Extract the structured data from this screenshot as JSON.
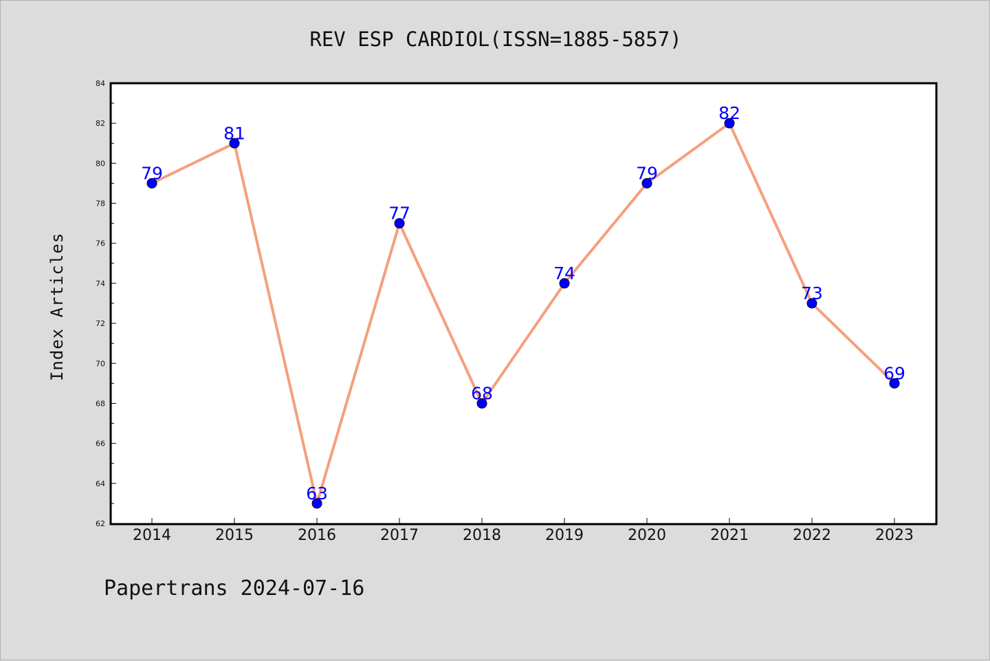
{
  "page": {
    "footer": "Papertrans 2024-07-16"
  },
  "chart_data": {
    "type": "line",
    "title": "REV ESP CARDIOL(ISSN=1885-5857)",
    "xlabel": "",
    "ylabel": "Index Articles",
    "categories": [
      "2014",
      "2015",
      "2016",
      "2017",
      "2018",
      "2019",
      "2020",
      "2021",
      "2022",
      "2023"
    ],
    "series": [
      {
        "values": [
          79,
          81,
          63,
          77,
          68,
          74,
          79,
          82,
          73,
          69
        ]
      }
    ],
    "ylim": [
      62,
      84
    ],
    "yticks": [
      62,
      64,
      66,
      68,
      70,
      72,
      74,
      76,
      78,
      80,
      82,
      84
    ],
    "grid": false,
    "colors": {
      "line": "#f4a07c",
      "marker": "#0000ff",
      "label": "#0000ff",
      "plot_background": "#ffffff",
      "page_background": "#dcdcdc"
    }
  }
}
